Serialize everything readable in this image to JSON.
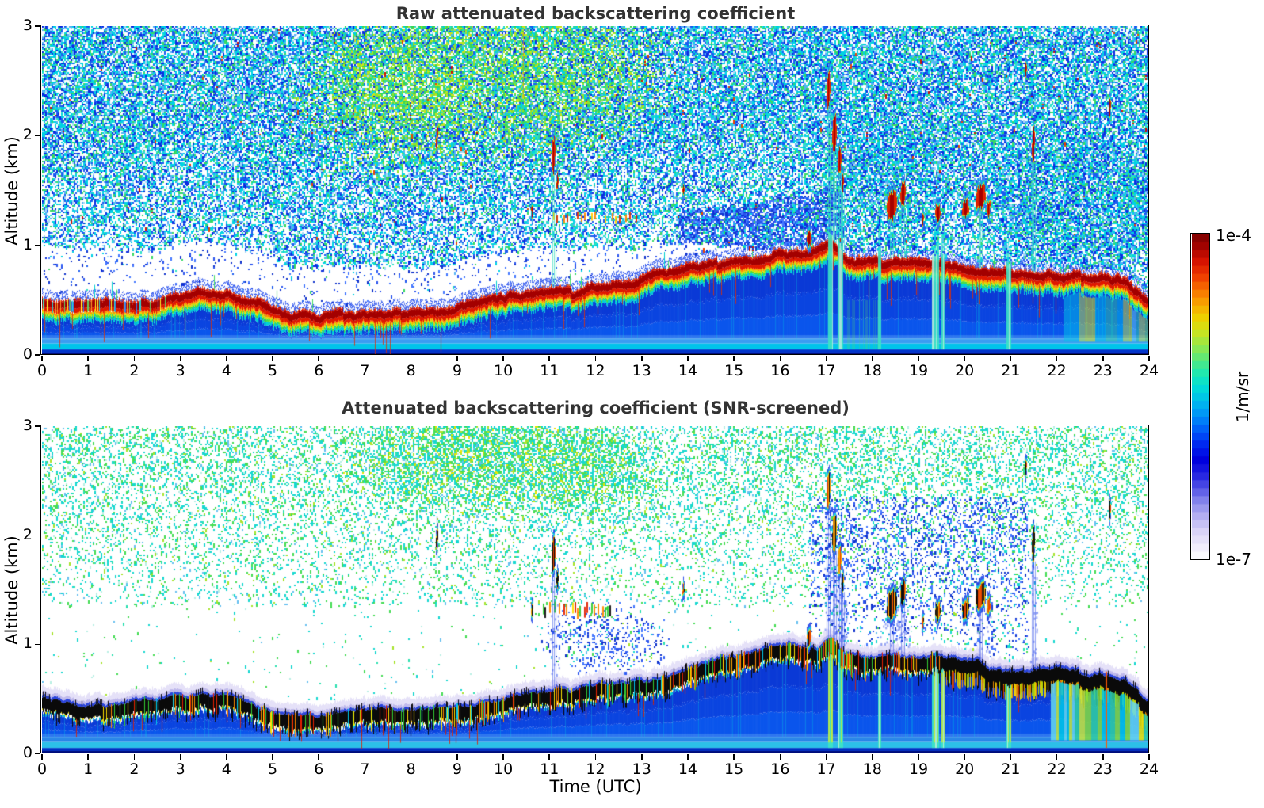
{
  "chart_data": {
    "type": "heatmap",
    "panels": [
      {
        "title": "Raw attenuated backscattering coefficient",
        "variant": "raw"
      },
      {
        "title": "Attenuated backscattering coefficient (SNR-screened)",
        "variant": "screened"
      }
    ],
    "x": {
      "label": "Time (UTC)",
      "range": [
        0,
        24
      ],
      "ticks": [
        0,
        1,
        2,
        3,
        4,
        5,
        6,
        7,
        8,
        9,
        10,
        11,
        12,
        13,
        14,
        15,
        16,
        17,
        18,
        19,
        20,
        21,
        22,
        23,
        24
      ]
    },
    "y": {
      "label": "Altitude (km)",
      "range": [
        0,
        3
      ],
      "ticks": [
        0,
        1,
        2,
        3
      ]
    },
    "colorbar": {
      "label_top": "1e-4",
      "label_bottom": "1e-7",
      "unit": "1/m/sr",
      "scale": "log",
      "steps": 41,
      "stops": [
        "#ffffff",
        "#eeeafb",
        "#d8d2f7",
        "#b6b1f2",
        "#8d8cec",
        "#5555e6",
        "#2222e0",
        "#0000dd",
        "#0022ee",
        "#0055f8",
        "#0088f8",
        "#00b4f0",
        "#00d8dc",
        "#16e8b8",
        "#50e882",
        "#90e84e",
        "#c6e422",
        "#ecd400",
        "#f8a800",
        "#f87400",
        "#ee3c00",
        "#d81400",
        "#a80400",
        "#7c0000"
      ]
    },
    "boundary_layer_height_km": [
      [
        0,
        0.48
      ],
      [
        0.5,
        0.45
      ],
      [
        1,
        0.44
      ],
      [
        1.5,
        0.42
      ],
      [
        2,
        0.44
      ],
      [
        2.5,
        0.46
      ],
      [
        3,
        0.5
      ],
      [
        3.5,
        0.54
      ],
      [
        4,
        0.54
      ],
      [
        4.3,
        0.48
      ],
      [
        5,
        0.39
      ],
      [
        5.5,
        0.37
      ],
      [
        6,
        0.35
      ],
      [
        7,
        0.38
      ],
      [
        8,
        0.4
      ],
      [
        9,
        0.44
      ],
      [
        10,
        0.49
      ],
      [
        11,
        0.55
      ],
      [
        12,
        0.6
      ],
      [
        13,
        0.66
      ],
      [
        14,
        0.76
      ],
      [
        15,
        0.86
      ],
      [
        16,
        0.93
      ],
      [
        16.8,
        0.97
      ],
      [
        17.1,
        1.02
      ],
      [
        17.4,
        0.88
      ],
      [
        18,
        0.83
      ],
      [
        18.5,
        0.86
      ],
      [
        19,
        0.83
      ],
      [
        20,
        0.8
      ],
      [
        21,
        0.77
      ],
      [
        22,
        0.74
      ],
      [
        23,
        0.7
      ],
      [
        23.5,
        0.64
      ],
      [
        24,
        0.47
      ]
    ],
    "features": {
      "clouds": [
        [
          8.57,
          1.98,
          0.25,
          0.05,
          0
        ],
        [
          10.62,
          1.32,
          0.1,
          0.05,
          0
        ],
        [
          11.1,
          1.82,
          0.3,
          0.09,
          1
        ],
        [
          11.17,
          1.58,
          0.14,
          0.05,
          0
        ],
        [
          13.9,
          1.5,
          0.08,
          0.05,
          0
        ],
        [
          16.62,
          1.06,
          0.13,
          0.1,
          0
        ],
        [
          17.05,
          2.42,
          0.3,
          0.09,
          1
        ],
        [
          17.18,
          2.02,
          0.32,
          0.11,
          1
        ],
        [
          17.28,
          1.76,
          0.22,
          0.08,
          1
        ],
        [
          17.36,
          1.56,
          0.16,
          0.06,
          1
        ],
        [
          18.42,
          1.36,
          0.24,
          0.22,
          1
        ],
        [
          18.66,
          1.47,
          0.2,
          0.12,
          1
        ],
        [
          19.1,
          1.22,
          0.1,
          0.06,
          0
        ],
        [
          19.42,
          1.3,
          0.14,
          0.12,
          0
        ],
        [
          20.02,
          1.33,
          0.14,
          0.16,
          0
        ],
        [
          20.34,
          1.44,
          0.2,
          0.22,
          1
        ],
        [
          20.52,
          1.34,
          0.12,
          0.08,
          0
        ],
        [
          21.5,
          1.92,
          0.32,
          0.07,
          1
        ],
        [
          21.32,
          2.62,
          0.12,
          0.04,
          0
        ],
        [
          23.15,
          2.25,
          0.16,
          0.04,
          0
        ]
      ],
      "ground_streaks": [
        [
          17.08,
          0.09,
          1.95
        ],
        [
          17.3,
          0.1,
          1.6
        ],
        [
          18.15,
          0.05,
          1.45
        ],
        [
          19.36,
          0.13,
          1.25
        ],
        [
          19.52,
          0.05,
          1.18
        ],
        [
          20.95,
          0.1,
          1.05
        ]
      ],
      "dotted_line": {
        "t1": 10.9,
        "t2": 12.95,
        "z_raw": 1.25,
        "z_screened": 1.31
      },
      "right_zone": {
        "raw_t1": 22.15,
        "screened_t1": 21.88,
        "t2": 24,
        "orange_line_t": 23.06,
        "palette": [
          "#c8e838",
          "#84dd3c",
          "#30d0a0",
          "#00c8e8",
          "#eeea00",
          "#66d8ee"
        ]
      },
      "thin_lines_raw": [
        [
          8.05,
          2.3,
          3.0,
          "#ff7700"
        ],
        [
          10.42,
          2.35,
          2.95,
          "#ff8800"
        ]
      ]
    },
    "noise": {
      "raw": {
        "palette": [
          [
            "#00d2e4",
            0.28
          ],
          [
            "#55b2f4",
            0.12
          ],
          [
            "#1b5cf0",
            0.2
          ],
          [
            "#0a2ae0",
            0.14
          ],
          [
            "#37d964",
            0.12
          ],
          [
            "#29e2c4",
            0.08
          ],
          [
            "#a9d9f6",
            0.06
          ]
        ],
        "greens": [
          "#3ad653",
          "#8fe32a",
          "#c8e41c",
          "#2fd8a0"
        ]
      },
      "screened": {
        "palette": [
          [
            "#16d8d0",
            0.42
          ],
          [
            "#46dd55",
            0.28
          ],
          [
            "#2ae0b0",
            0.1
          ],
          [
            "#66c0f0",
            0.08
          ],
          [
            "#a8e32c",
            0.07
          ],
          [
            "#b9f0e4",
            0.05
          ]
        ],
        "greens": [
          "#a8e32c",
          "#c8e41c",
          "#5add44",
          "#e8e400"
        ],
        "blues": [
          "#2b55ee",
          "#1133cc",
          "#4477ff"
        ]
      },
      "band_ticks": [
        "#ffe000",
        "#ff8800",
        "#e82000",
        "#33cc33",
        "#00ccee",
        "#101010"
      ]
    }
  },
  "colors": {
    "title": "#333333",
    "axis": "#000000"
  }
}
